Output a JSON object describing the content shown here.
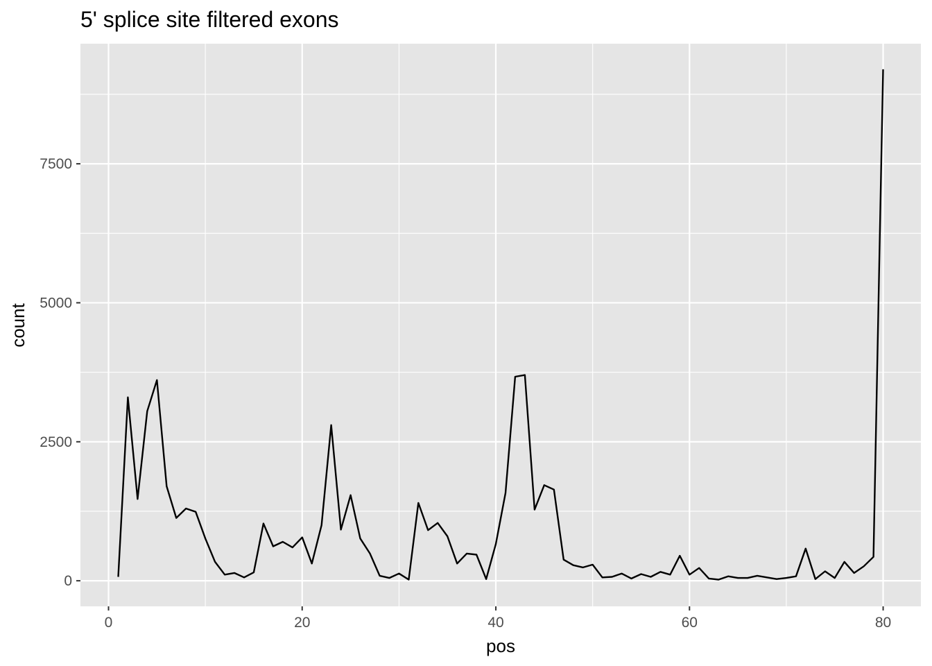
{
  "chart_data": {
    "type": "line",
    "title": "5' splice site filtered exons",
    "xlabel": "pos",
    "ylabel": "count",
    "xlim": [
      -2.9,
      83.9
    ],
    "ylim": [
      -460,
      9660
    ],
    "x_ticks": [
      0,
      20,
      40,
      60,
      80
    ],
    "x_tick_labels": [
      "0",
      "20",
      "40",
      "60",
      "80"
    ],
    "x_minor": [
      10,
      30,
      50,
      70
    ],
    "y_ticks": [
      0,
      2500,
      5000,
      7500
    ],
    "y_tick_labels": [
      "0",
      "2500",
      "5000",
      "7500"
    ],
    "y_minor": [
      1250,
      3750,
      6250,
      8750
    ],
    "grid": true,
    "legend": "none",
    "series": [
      {
        "x": [
          1,
          2,
          3,
          4,
          5,
          6,
          7,
          8,
          9,
          10,
          11,
          12,
          13,
          14,
          15,
          16,
          17,
          18,
          19,
          20,
          21,
          22,
          23,
          24,
          25,
          26,
          27,
          28,
          29,
          30,
          31,
          32,
          33,
          34,
          35,
          36,
          37,
          38,
          39,
          40,
          41,
          42,
          43,
          44,
          45,
          46,
          47,
          48,
          49,
          50,
          51,
          52,
          53,
          54,
          55,
          56,
          57,
          58,
          59,
          60,
          61,
          62,
          63,
          64,
          65,
          66,
          67,
          68,
          69,
          70,
          71,
          72,
          73,
          74,
          75,
          76,
          77,
          78,
          79,
          80
        ],
        "values": [
          70,
          3300,
          1470,
          3050,
          3610,
          1700,
          1130,
          1300,
          1240,
          760,
          340,
          110,
          140,
          60,
          150,
          1030,
          620,
          700,
          600,
          780,
          310,
          1000,
          2800,
          920,
          1540,
          760,
          490,
          90,
          50,
          130,
          20,
          1400,
          910,
          1040,
          800,
          310,
          490,
          470,
          30,
          660,
          1580,
          3670,
          3700,
          1280,
          1720,
          1640,
          380,
          280,
          240,
          290,
          60,
          70,
          130,
          40,
          120,
          70,
          160,
          110,
          450,
          110,
          230,
          40,
          20,
          80,
          50,
          50,
          90,
          60,
          30,
          50,
          80,
          580,
          30,
          170,
          50,
          340,
          140,
          260,
          430,
          9200
        ]
      }
    ]
  }
}
